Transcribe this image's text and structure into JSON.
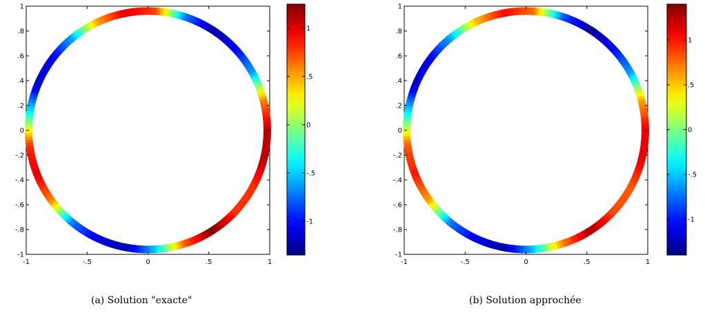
{
  "chart_data": [
    {
      "type": "heatmap",
      "caption": "(a) Solution \"exacte\"",
      "xlim": [
        -1,
        1
      ],
      "ylim": [
        -1,
        1
      ],
      "x_ticks": [
        -1,
        -0.5,
        0,
        0.5,
        1
      ],
      "y_ticks": [
        1,
        0.8,
        0.6,
        0.4,
        0.2,
        0,
        -0.2,
        -0.4,
        -0.6,
        -0.8,
        -1
      ],
      "colorbar": {
        "range": [
          -1.35,
          1.25
        ],
        "ticks": [
          1,
          0.5,
          0,
          -0.5,
          -1
        ]
      },
      "ring": {
        "radius": 0.98,
        "values": [
          1.1,
          0.6,
          -0.6,
          -1.05,
          -1.25,
          -0.7,
          0.75,
          1.0,
          0.5,
          -0.6,
          -1.1,
          -1.15,
          -0.3,
          0.8,
          1.0,
          0.6,
          -0.7,
          -1.1,
          -1.25,
          -0.5,
          0.7,
          1.25,
          0.8,
          0.8,
          1.1
        ]
      }
    },
    {
      "type": "heatmap",
      "caption": "(b) Solution approchée",
      "xlim": [
        -1,
        1
      ],
      "ylim": [
        -1,
        1
      ],
      "x_ticks": [
        -1,
        -0.5,
        0,
        0.5,
        1
      ],
      "y_ticks": [
        1,
        0.8,
        0.6,
        0.4,
        0.2,
        0,
        -0.2,
        -0.4,
        -0.6,
        -0.8,
        -1
      ],
      "colorbar": {
        "range": [
          -1.4,
          1.4
        ],
        "ticks": [
          1,
          0.5,
          0,
          -0.5,
          -1
        ]
      },
      "ring": {
        "radius": 0.98,
        "values": [
          1.1,
          0.6,
          -0.6,
          -1.05,
          -1.35,
          -0.8,
          0.75,
          1.05,
          0.5,
          -0.6,
          -1.1,
          -1.2,
          -0.3,
          0.8,
          1.0,
          0.6,
          -0.7,
          -1.1,
          -1.3,
          -0.5,
          0.7,
          1.3,
          0.85,
          0.8,
          1.1
        ]
      }
    }
  ]
}
